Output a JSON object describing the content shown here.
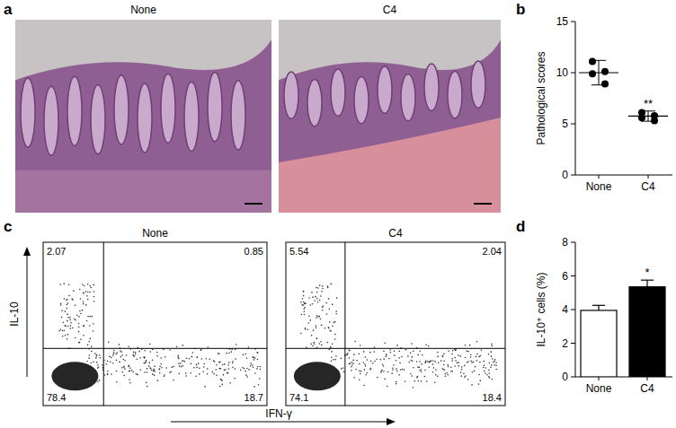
{
  "panel_labels": [
    "a",
    "b",
    "c",
    "d"
  ],
  "histology": {
    "titles": [
      "None",
      "C4"
    ]
  },
  "chart_data": [
    {
      "type": "dot_plot",
      "categories": [
        "None",
        "C4"
      ],
      "points": [
        [
          11.1,
          10.1,
          9.9,
          8.9
        ],
        [
          6.1,
          5.8,
          5.6,
          5.3
        ]
      ],
      "values": [
        10.0,
        5.75
      ],
      "errors": [
        1.2,
        0.5
      ],
      "y_label": "Pathological scores",
      "ylim": [
        0,
        15
      ],
      "yticks": [
        0,
        5,
        10,
        15
      ],
      "significance": [
        null,
        "**"
      ],
      "color": "#000000"
    },
    {
      "type": "flow_cytometry",
      "title": "None",
      "x_label": "IFN-γ",
      "y_label": "IL-10",
      "quadrants": {
        "top_left": 2.07,
        "top_right": 0.85,
        "bottom_left": 78.4,
        "bottom_right": 18.7
      },
      "tick_labels": false
    },
    {
      "type": "flow_cytometry",
      "title": "C4",
      "quadrants": {
        "top_left": 5.54,
        "top_right": 2.04,
        "bottom_left": 74.1,
        "bottom_right": 18.4
      },
      "tick_labels": false
    },
    {
      "type": "bar",
      "categories": [
        "None",
        "C4"
      ],
      "values": [
        3.95,
        5.35
      ],
      "errors": [
        0.3,
        0.4
      ],
      "colors": [
        "#ffffff",
        "#000000"
      ],
      "y_label": "IL-10⁺ cells (%)",
      "ylim": [
        0,
        8
      ],
      "yticks": [
        0,
        2,
        4,
        6,
        8
      ],
      "significance": [
        null,
        "*"
      ]
    }
  ]
}
